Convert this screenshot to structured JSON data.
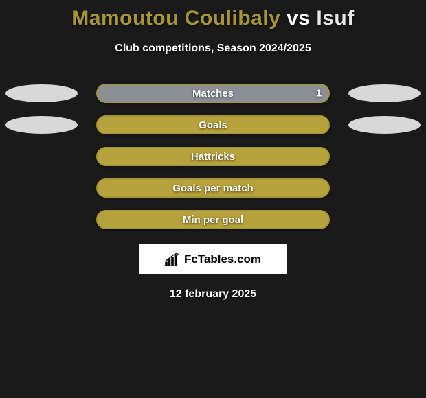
{
  "background_color": "#1a1a1a",
  "title": {
    "player1": {
      "text": "Mamoutou Coulibaly",
      "color": "#a89536"
    },
    "vs": {
      "text": "vs",
      "color": "#ffffff"
    },
    "player2": {
      "text": "Isuf",
      "color": "#e8e8e8"
    }
  },
  "subtitle": "Club competitions, Season 2024/2025",
  "colors": {
    "player1_main": "#a89536",
    "player1_fill": "#b7a33c",
    "player2_main": "#e8e8e8",
    "player2_fill": "#e8e8e8",
    "ellipse_gray": "#d8d8d8"
  },
  "rows": [
    {
      "label": "Matches",
      "value_left": "",
      "value_right": "1",
      "left_pct": 0,
      "right_pct": 100,
      "fill_left_color": "#b7a33c",
      "fill_right_color": "#8a9096",
      "border_color": "#a89536",
      "show_ellipses": true
    },
    {
      "label": "Goals",
      "value_left": "",
      "value_right": "",
      "left_pct": 0,
      "right_pct": 100,
      "fill_left_color": "#b7a33c",
      "fill_right_color": "#b7a33c",
      "border_color": "#a89536",
      "show_ellipses": true
    },
    {
      "label": "Hattricks",
      "value_left": "",
      "value_right": "",
      "left_pct": 0,
      "right_pct": 100,
      "fill_left_color": "#b7a33c",
      "fill_right_color": "#b7a33c",
      "border_color": "#a89536",
      "show_ellipses": false
    },
    {
      "label": "Goals per match",
      "value_left": "",
      "value_right": "",
      "left_pct": 0,
      "right_pct": 100,
      "fill_left_color": "#b7a33c",
      "fill_right_color": "#b7a33c",
      "border_color": "#a89536",
      "show_ellipses": false
    },
    {
      "label": "Min per goal",
      "value_left": "",
      "value_right": "",
      "left_pct": 0,
      "right_pct": 100,
      "fill_left_color": "#b7a33c",
      "fill_right_color": "#b7a33c",
      "border_color": "#a89536",
      "show_ellipses": false
    }
  ],
  "branding": "FcTables.com",
  "date": "12 february 2025"
}
